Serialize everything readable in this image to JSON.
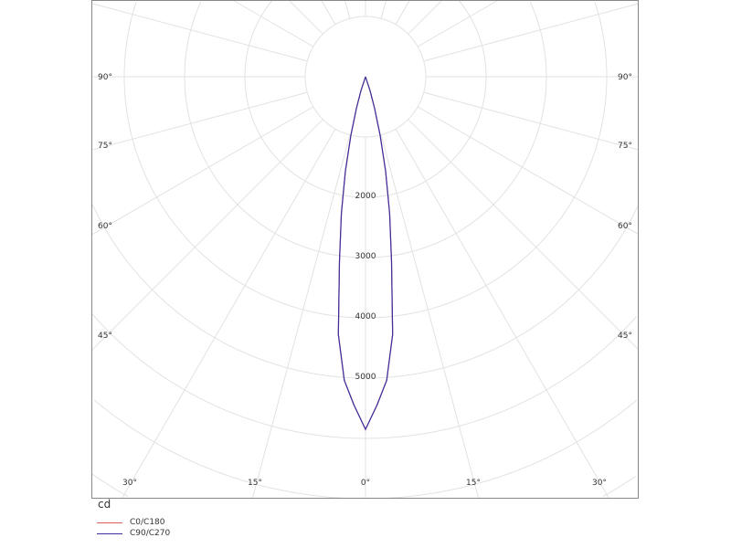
{
  "chart_data": {
    "type": "polar-line",
    "unit_label": "cd",
    "radial_ticks": [
      2000,
      3000,
      4000,
      5000
    ],
    "radial_grid_step": 1000,
    "angle_labels_bottom": [
      "30°",
      "15°",
      "0°",
      "15°",
      "30°"
    ],
    "angle_labels_side": [
      "90°",
      "75°",
      "60°",
      "45°"
    ],
    "angles": [
      0,
      2,
      4,
      6,
      8,
      10,
      12,
      14,
      16,
      18,
      20
    ],
    "series": [
      {
        "name": "C0/C180",
        "color": "#e06060",
        "values": [
          5850,
          5450,
          5050,
          4300,
          3100,
          2300,
          1600,
          1000,
          550,
          250,
          0
        ]
      },
      {
        "name": "C90/C270",
        "color": "#3b2fa0",
        "values": [
          5850,
          5450,
          5050,
          4300,
          3100,
          2300,
          1600,
          1000,
          550,
          250,
          0
        ]
      }
    ],
    "grid": true,
    "legend_position": "bottom-left"
  }
}
